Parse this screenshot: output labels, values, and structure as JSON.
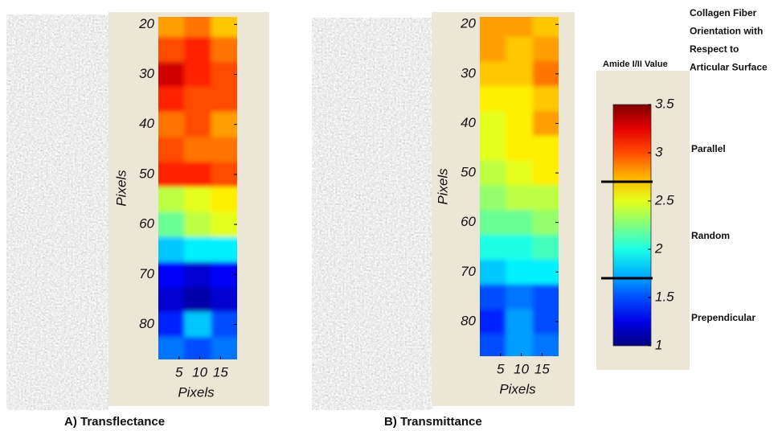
{
  "chart_data": [
    {
      "type": "heatmap",
      "caption": "A) Transflectance",
      "xlabel": "Pixels",
      "ylabel": "Pixels",
      "xlim": [
        0,
        19
      ],
      "ylim": [
        18.5,
        87
      ],
      "xticks": [
        5,
        10,
        15
      ],
      "yticks": [
        20,
        30,
        40,
        50,
        60,
        70,
        80
      ],
      "x": [
        3,
        9.5,
        16
      ],
      "y": [
        20,
        25,
        30,
        35,
        40,
        45,
        50,
        55,
        60,
        65,
        70,
        75,
        80,
        85
      ],
      "values": [
        [
          2.8,
          2.9,
          2.7
        ],
        [
          3.0,
          3.1,
          2.9
        ],
        [
          3.3,
          3.1,
          3.0
        ],
        [
          3.1,
          3.0,
          3.0
        ],
        [
          2.9,
          3.0,
          2.8
        ],
        [
          3.0,
          2.9,
          2.9
        ],
        [
          3.1,
          3.1,
          3.0
        ],
        [
          2.4,
          2.5,
          2.6
        ],
        [
          2.2,
          2.4,
          2.5
        ],
        [
          1.8,
          1.9,
          1.9
        ],
        [
          1.3,
          1.2,
          1.3
        ],
        [
          1.2,
          1.1,
          1.2
        ],
        [
          1.4,
          1.8,
          1.5
        ],
        [
          1.6,
          1.5,
          1.6
        ]
      ]
    },
    {
      "type": "heatmap",
      "caption": "B) Transmittance",
      "xlabel": "Pixels",
      "ylabel": "Pixels",
      "xlim": [
        0,
        19
      ],
      "ylim": [
        18.5,
        87
      ],
      "xticks": [
        5,
        10,
        15
      ],
      "yticks": [
        20,
        30,
        40,
        50,
        60,
        70,
        80
      ],
      "x": [
        3,
        9.5,
        16
      ],
      "y": [
        20,
        25,
        30,
        35,
        40,
        45,
        50,
        55,
        60,
        65,
        70,
        75,
        80,
        85
      ],
      "values": [
        [
          2.8,
          2.8,
          2.7
        ],
        [
          2.8,
          2.7,
          2.8
        ],
        [
          2.7,
          2.7,
          2.9
        ],
        [
          2.6,
          2.6,
          2.7
        ],
        [
          2.5,
          2.6,
          2.8
        ],
        [
          2.5,
          2.6,
          2.6
        ],
        [
          2.4,
          2.5,
          2.6
        ],
        [
          2.3,
          2.4,
          2.4
        ],
        [
          2.2,
          2.2,
          2.3
        ],
        [
          2.0,
          2.0,
          2.1
        ],
        [
          1.8,
          1.9,
          1.9
        ],
        [
          1.5,
          1.6,
          1.5
        ],
        [
          1.4,
          1.7,
          1.5
        ],
        [
          1.5,
          1.7,
          1.6
        ]
      ]
    },
    {
      "type": "colorbar",
      "colormap": "jet",
      "title": "Amide I/II Value",
      "title_lines": [
        "Collagen Fiber",
        "Orientation with",
        "Respect to",
        "Articular Surface"
      ],
      "clim": [
        1,
        3.5
      ],
      "ticks": [
        1,
        1.5,
        2,
        2.5,
        3,
        3.5
      ],
      "thresholds": [
        2.7,
        1.7
      ],
      "bands": [
        "Parallel",
        "Random",
        "Prependicular"
      ]
    }
  ]
}
